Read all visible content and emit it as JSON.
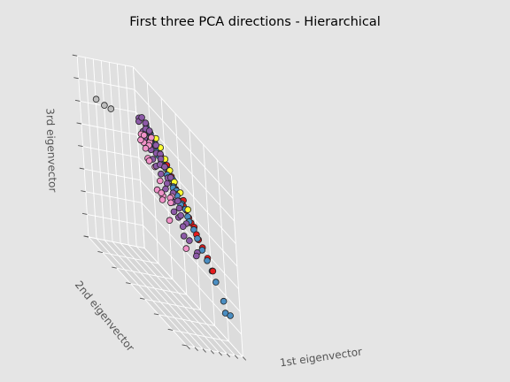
{
  "chart_data": {
    "type": "scatter",
    "projection": "3d",
    "title": "First three PCA directions - Hierarchical",
    "xlabel": "1st eigenvector",
    "ylabel": "2nd eigenvector",
    "zlabel": "3rd eigenvector",
    "xlim": [
      -6,
      1
    ],
    "ylim": [
      -1,
      6
    ],
    "zlim": [
      -2,
      6
    ],
    "grid": true,
    "legend": "none",
    "colors": {
      "background": "#e5e5e5",
      "pane": "#e0e0e0",
      "grid": "#ffffff",
      "cluster_1": "#bdbdbd",
      "cluster_2": "#f092c8",
      "cluster_3": "#8d5aa8",
      "cluster_4": "#4b8ec2",
      "cluster_5": "#e41a1c",
      "cluster_6": "#ffff33",
      "edge": "#222222"
    },
    "series": [
      {
        "color": "#bdbdbd",
        "points": [
          [
            -5.6,
            0.0,
            4.8
          ],
          [
            -4.6,
            0.0,
            4.6
          ],
          [
            -3.8,
            0.0,
            4.5
          ]
        ]
      },
      {
        "color": "#f092c8",
        "points": [
          [
            -1.9,
            1.8,
            4.6
          ],
          [
            -1.8,
            1.2,
            4.3
          ],
          [
            -1.6,
            1.4,
            4.0
          ],
          [
            -1.3,
            1.3,
            4.1
          ],
          [
            -1.5,
            0.8,
            4.1
          ],
          [
            -2.2,
            1.5,
            3.9
          ],
          [
            -2.1,
            1.1,
            4.0
          ],
          [
            -2.5,
            1.9,
            3.6
          ],
          [
            -1.4,
            0.9,
            3.8
          ],
          [
            -1.9,
            2.3,
            2.5
          ],
          [
            -1.0,
            1.4,
            3.1
          ],
          [
            -1.3,
            1.9,
            2.8
          ],
          [
            -1.5,
            1.2,
            3.3
          ],
          [
            -2.1,
            3.1,
            2.6
          ],
          [
            -1.8,
            2.9,
            2.7
          ],
          [
            -1.1,
            2.6,
            2.6
          ],
          [
            -2.4,
            3.1,
            1.8
          ],
          [
            -2.0,
            4.0,
            1.2
          ],
          [
            -1.8,
            2.3,
            2.2
          ],
          [
            -2.4,
            2.3,
            2.6
          ],
          [
            -1.2,
            2.0,
            2.2
          ]
        ]
      },
      {
        "color": "#8d5aa8",
        "points": [
          [
            -0.3,
            0.2,
            4.5
          ],
          [
            -0.5,
            0.1,
            4.4
          ],
          [
            -0.2,
            0.4,
            4.4
          ],
          [
            0.0,
            0.3,
            4.3
          ],
          [
            -0.4,
            0.5,
            4.2
          ],
          [
            -0.1,
            0.6,
            4.2
          ],
          [
            -0.6,
            0.4,
            4.0
          ],
          [
            0.1,
            0.5,
            4.1
          ],
          [
            -0.8,
            0.6,
            3.8
          ],
          [
            -0.3,
            0.8,
            3.9
          ],
          [
            -0.1,
            1.0,
            3.8
          ],
          [
            -0.7,
            1.0,
            3.6
          ],
          [
            -0.4,
            1.2,
            3.6
          ],
          [
            -0.2,
            1.4,
            3.5
          ],
          [
            -0.9,
            1.2,
            3.3
          ],
          [
            -0.5,
            1.5,
            3.3
          ],
          [
            -0.1,
            1.6,
            3.3
          ],
          [
            -0.8,
            1.7,
            3.0
          ],
          [
            -0.3,
            1.9,
            3.0
          ],
          [
            -0.6,
            2.0,
            2.8
          ],
          [
            -1.0,
            2.1,
            2.6
          ],
          [
            -0.4,
            2.3,
            2.6
          ],
          [
            -0.8,
            2.5,
            2.3
          ],
          [
            -0.2,
            2.5,
            2.4
          ],
          [
            -1.1,
            2.7,
            2.0
          ],
          [
            -0.6,
            2.9,
            2.0
          ],
          [
            -0.9,
            3.2,
            1.7
          ],
          [
            -0.3,
            3.1,
            1.8
          ],
          [
            -1.2,
            3.4,
            1.4
          ],
          [
            -0.7,
            3.5,
            1.3
          ],
          [
            -0.5,
            0.9,
            4.0
          ],
          [
            -0.2,
            1.1,
            3.9
          ],
          [
            -0.7,
            0.2,
            4.3
          ],
          [
            -0.1,
            2.0,
            3.1
          ],
          [
            -0.4,
            2.7,
            2.2
          ],
          [
            -0.9,
            2.9,
            1.9
          ],
          [
            -0.3,
            3.8,
            1.0
          ],
          [
            0.1,
            1.2,
            3.6
          ],
          [
            -1.0,
            1.5,
            3.2
          ],
          [
            -0.6,
            3.9,
            0.9
          ]
        ]
      },
      {
        "color": "#4b8ec2",
        "points": [
          [
            0.2,
            0.2,
            4.1
          ],
          [
            0.3,
            0.3,
            3.9
          ],
          [
            0.4,
            0.4,
            3.8
          ],
          [
            0.1,
            0.3,
            4.0
          ],
          [
            0.5,
            0.6,
            3.5
          ],
          [
            0.3,
            0.6,
            3.6
          ],
          [
            0.6,
            0.8,
            3.3
          ],
          [
            0.2,
            0.8,
            3.5
          ],
          [
            0.5,
            1.0,
            3.2
          ],
          [
            0.7,
            1.2,
            3.0
          ],
          [
            0.4,
            1.2,
            3.1
          ],
          [
            0.6,
            1.5,
            2.8
          ],
          [
            0.3,
            1.5,
            2.9
          ],
          [
            0.5,
            1.8,
            2.6
          ],
          [
            0.7,
            1.9,
            2.5
          ],
          [
            0.4,
            2.1,
            2.4
          ],
          [
            0.6,
            2.3,
            2.2
          ],
          [
            0.3,
            2.4,
            2.2
          ],
          [
            0.6,
            2.7,
            1.9
          ],
          [
            0.4,
            2.9,
            1.8
          ],
          [
            0.6,
            3.1,
            1.6
          ],
          [
            0.5,
            3.4,
            1.4
          ],
          [
            0.4,
            4.1,
            0.9
          ],
          [
            0.6,
            4.3,
            0.6
          ],
          [
            0.5,
            4.6,
            0.3
          ],
          [
            0.5,
            5.1,
            -0.2
          ],
          [
            0.3,
            5.3,
            -0.6
          ],
          [
            0.4,
            5.6,
            -0.5
          ],
          [
            0.5,
            0.3,
            3.9
          ],
          [
            0.2,
            1.0,
            3.4
          ],
          [
            0.7,
            0.5,
            3.6
          ],
          [
            0.8,
            1.6,
            2.8
          ],
          [
            0.3,
            1.9,
            2.6
          ],
          [
            0.7,
            2.5,
            2.1
          ],
          [
            0.5,
            3.7,
            1.1
          ]
        ]
      },
      {
        "color": "#e41a1c",
        "points": [
          [
            0.8,
            0.4,
            3.7
          ],
          [
            0.9,
            0.6,
            3.5
          ],
          [
            0.8,
            0.8,
            3.3
          ],
          [
            1.0,
            0.9,
            3.2
          ],
          [
            0.9,
            1.1,
            3.0
          ],
          [
            0.8,
            1.3,
            2.9
          ],
          [
            1.0,
            1.4,
            2.8
          ],
          [
            0.9,
            1.6,
            2.6
          ],
          [
            0.8,
            1.8,
            2.5
          ],
          [
            1.0,
            1.9,
            2.4
          ],
          [
            0.9,
            2.1,
            2.2
          ],
          [
            0.8,
            2.3,
            2.1
          ],
          [
            1.0,
            2.4,
            2.0
          ],
          [
            0.9,
            2.6,
            1.8
          ],
          [
            0.8,
            2.8,
            1.7
          ],
          [
            1.0,
            2.9,
            1.6
          ],
          [
            0.9,
            3.1,
            1.4
          ],
          [
            0.8,
            3.3,
            1.3
          ],
          [
            0.9,
            3.5,
            1.1
          ],
          [
            0.8,
            3.9,
            0.9
          ],
          [
            0.7,
            4.3,
            0.6
          ],
          [
            1.0,
            1.1,
            3.1
          ],
          [
            1.0,
            2.2,
            2.3
          ]
        ]
      },
      {
        "color": "#ffff33",
        "points": [
          [
            1.0,
            0.4,
            3.8
          ],
          [
            1.0,
            0.7,
            3.6
          ],
          [
            1.0,
            1.0,
            3.3
          ],
          [
            1.0,
            1.3,
            3.0
          ],
          [
            1.0,
            1.6,
            2.7
          ],
          [
            1.0,
            2.0,
            2.5
          ],
          [
            1.0,
            2.5,
            2.1
          ]
        ]
      }
    ]
  }
}
